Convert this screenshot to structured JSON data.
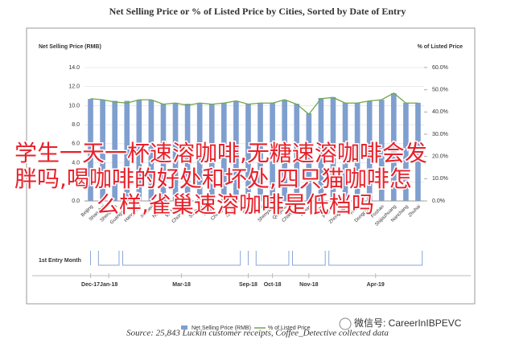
{
  "chart_data": {
    "type": "bar",
    "title": "Net Selling Price or % of Listed Price by Cities, Sorted by Date of Entry",
    "y_label": "Net Selling Price (RMB)",
    "y2_label": "% of Listed Price",
    "categories": [
      "Beijing",
      "Shanghai",
      "Shenzhen",
      "Guangzhou",
      "Hangzhou",
      "Xiamen",
      "Nanjing",
      "Wuhan",
      "Chongqing",
      "Suzhou",
      "Tianjin",
      "Chengdu",
      "Ningbo",
      "Xi'an",
      "Wuxi",
      "Shenyang",
      "Qingdao",
      "Changsha",
      "Dalian",
      "Jinan",
      "Fuzhou",
      "Zhengzhou",
      "Hefei",
      "Dongguan",
      "Foshan",
      "Shijiazhuang",
      "Nanchang",
      "Zhuhai"
    ],
    "series": [
      {
        "name": "Net Selling Price (RMB)",
        "type": "bar",
        "color": "#7f9fcf",
        "values": [
          10.7,
          10.6,
          10.5,
          10.5,
          10.6,
          10.6,
          10.2,
          10.3,
          10.2,
          10.3,
          10.2,
          10.3,
          10.5,
          10.2,
          10.3,
          10.3,
          10.6,
          10.2,
          9.2,
          10.8,
          10.9,
          10.3,
          10.3,
          10.5,
          10.6,
          11.3,
          10.3,
          10.3
        ]
      },
      {
        "name": "% of Listed Price",
        "type": "line",
        "axis": "y2",
        "color": "#70a84a",
        "values": [
          46,
          45.5,
          44.5,
          44,
          45.5,
          45.5,
          43.5,
          44,
          43,
          44,
          43.5,
          44,
          45,
          43.5,
          44,
          44,
          45.5,
          43.5,
          39,
          46,
          46.5,
          44,
          44,
          45,
          45.5,
          48.5,
          44,
          44
        ]
      }
    ],
    "ylim": [
      0,
      14
    ],
    "yticks": [
      {
        "value": 0,
        "label": "0.0"
      },
      {
        "value": 2,
        "label": "2.0"
      },
      {
        "value": 4,
        "label": "4.0"
      },
      {
        "value": 6,
        "label": "6.0"
      },
      {
        "value": 8,
        "label": "8.0"
      },
      {
        "value": 10,
        "label": "10.0"
      },
      {
        "value": 12,
        "label": "12.0"
      },
      {
        "value": 14,
        "label": "14.0"
      }
    ],
    "y2lim": [
      0,
      60
    ],
    "y2ticks": [
      {
        "value": 0,
        "label": "0.0%"
      },
      {
        "value": 10,
        "label": "10.0%"
      },
      {
        "value": 20,
        "label": "20.0%"
      },
      {
        "value": 30,
        "label": "30.0%"
      },
      {
        "value": 40,
        "label": "40.0%"
      },
      {
        "value": 50,
        "label": "50.0%"
      },
      {
        "value": 60,
        "label": "60.0%"
      }
    ],
    "grid": true,
    "timeline_title": "1st Entry Month",
    "timeline": [
      "Dec-17",
      "Jan-18",
      "Mar-18",
      "Sep-18",
      "Oct-18",
      "Nov-18",
      "Apr-19"
    ],
    "source": "Source: 25,843 Luckin customer receipts, Coffee_Detective collected data",
    "watermark": "微信号: CareerInIBPEVC"
  },
  "overlay": [
    "学生一天一杯速溶咖啡,无糖速溶咖啡会发",
    "胖吗,喝咖啡的好处和坏处,四只猫咖啡怎",
    "么样,雀巢速溶咖啡是低档吗"
  ]
}
